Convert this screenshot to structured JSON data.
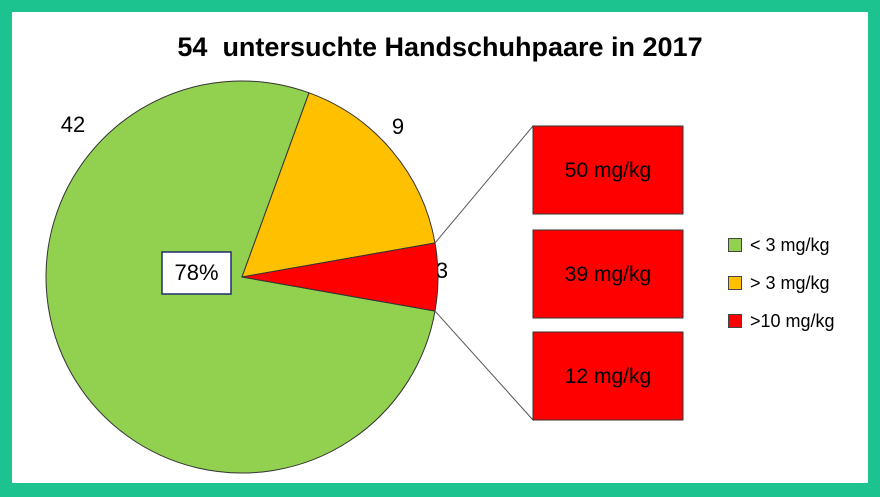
{
  "chart_data": {
    "type": "pie",
    "title": "54  untersuchte Handschuhpaare in 2017",
    "slices": [
      {
        "label": "< 3 mg/kg",
        "value": 42,
        "color": "#92d050"
      },
      {
        "label": "> 3 mg/kg",
        "value": 9,
        "color": "#ffc000"
      },
      {
        "label": ">10 mg/kg",
        "value": 3,
        "color": "#ff0000"
      }
    ],
    "slice_value_labels": [
      "42",
      "9",
      "3"
    ],
    "percent_label": "78%",
    "breakdown": {
      "of_slice": ">10 mg/kg",
      "values": [
        "50 mg/kg",
        "39 mg/kg",
        "12 mg/kg"
      ],
      "color": "#ff0000"
    },
    "legend": {
      "placement": "right",
      "entries": [
        {
          "label": "< 3 mg/kg",
          "color": "#92d050"
        },
        {
          "label": "> 3 mg/kg",
          "color": "#ffc000"
        },
        {
          "label": ">10 mg/kg",
          "color": "#ff0000"
        }
      ]
    }
  }
}
